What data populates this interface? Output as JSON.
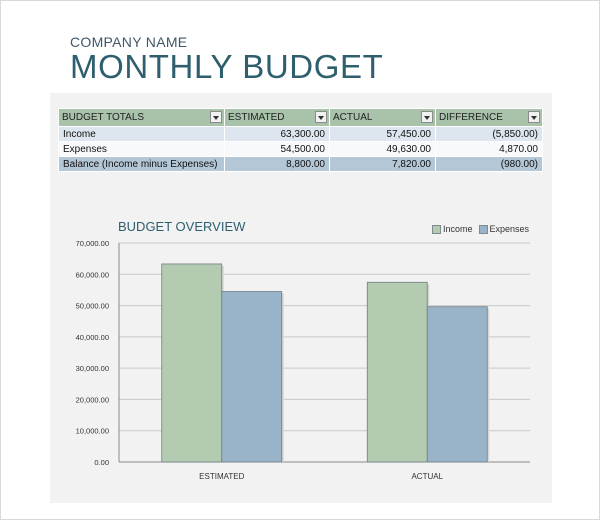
{
  "header": {
    "company": "COMPANY NAME",
    "title": "MONTHLY BUDGET"
  },
  "table": {
    "columns": [
      "BUDGET TOTALS",
      "ESTIMATED",
      "ACTUAL",
      "DIFFERENCE"
    ],
    "rows": [
      {
        "label": "Income",
        "estimated": "63,300.00",
        "actual": "57,450.00",
        "difference": "(5,850.00)",
        "negative": true
      },
      {
        "label": "Expenses",
        "estimated": "54,500.00",
        "actual": "49,630.00",
        "difference": "4,870.00",
        "negative": false
      },
      {
        "label": "Balance (Income minus Expenses)",
        "estimated": "8,800.00",
        "actual": "7,820.00",
        "difference": "(980.00)",
        "negative": true
      }
    ]
  },
  "colors": {
    "income": "#b3cbb1",
    "expenses": "#99b4c8",
    "negative": "#e0202a"
  },
  "chart_data": {
    "type": "bar",
    "title": "BUDGET OVERVIEW",
    "categories": [
      "ESTIMATED",
      "ACTUAL"
    ],
    "series": [
      {
        "name": "Income",
        "values": [
          63300,
          57450
        ]
      },
      {
        "name": "Expenses",
        "values": [
          54500,
          49630
        ]
      }
    ],
    "ylim": [
      0,
      70000
    ],
    "yticks": [
      0,
      10000,
      20000,
      30000,
      40000,
      50000,
      60000,
      70000
    ],
    "ytick_labels": [
      "0.00",
      "10,000.00",
      "20,000.00",
      "30,000.00",
      "40,000.00",
      "50,000.00",
      "60,000.00",
      "70,000.00"
    ],
    "grid": true,
    "legend": "top-right"
  }
}
